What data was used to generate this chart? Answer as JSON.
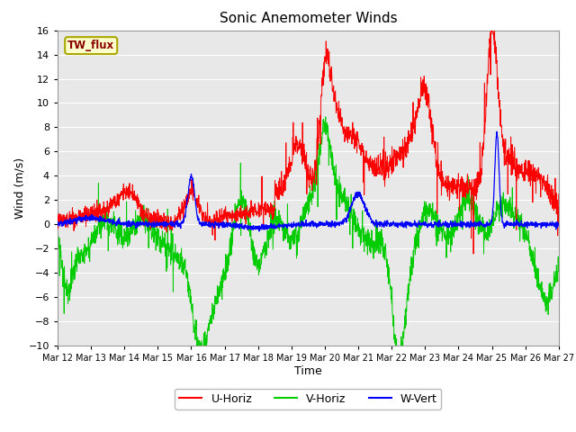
{
  "title": "Sonic Anemometer Winds",
  "xlabel": "Time",
  "ylabel": "Wind (m/s)",
  "ylim": [
    -10,
    16
  ],
  "yticks": [
    -10,
    -8,
    -6,
    -4,
    -2,
    0,
    2,
    4,
    6,
    8,
    10,
    12,
    14,
    16
  ],
  "xtick_labels": [
    "Mar 12",
    "Mar 13",
    "Mar 14",
    "Mar 15",
    "Mar 16",
    "Mar 17",
    "Mar 18",
    "Mar 19",
    "Mar 20",
    "Mar 21",
    "Mar 22",
    "Mar 23",
    "Mar 24",
    "Mar 25",
    "Mar 26",
    "Mar 27"
  ],
  "label_box_text": "TW_flux",
  "label_box_color": "#ffffcc",
  "label_box_edgecolor": "#aaa800",
  "label_text_color": "#880000",
  "colors": {
    "U-Horiz": "#ff0000",
    "V-Horiz": "#00cc00",
    "W-Vert": "#0000ff"
  },
  "plot_bg_color": "#e8e8e8",
  "grid_color": "#ffffff",
  "n_points": 2000
}
